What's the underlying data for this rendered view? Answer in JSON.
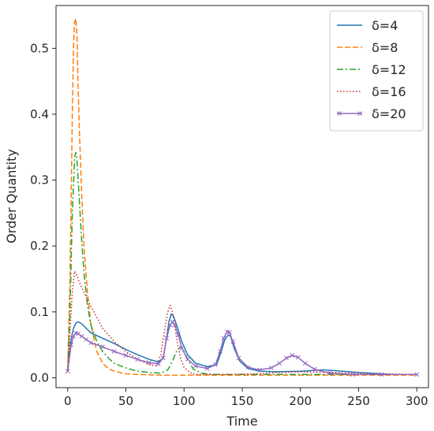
{
  "chart_data": {
    "type": "line",
    "xlabel": "Time",
    "ylabel": "Order Quantity",
    "xlim": [
      -10,
      310
    ],
    "ylim": [
      -0.015,
      0.565
    ],
    "xticks": [
      0,
      50,
      100,
      150,
      200,
      250,
      300
    ],
    "yticks": [
      0.0,
      0.1,
      0.2,
      0.3,
      0.4,
      0.5
    ],
    "xtick_labels": [
      "0",
      "50",
      "100",
      "150",
      "200",
      "250",
      "300"
    ],
    "ytick_labels": [
      "0.0",
      "0.1",
      "0.2",
      "0.3",
      "0.4",
      "0.5"
    ],
    "grid": false,
    "legend_position": "top-right",
    "series": [
      {
        "name": "δ=4",
        "color": "#1f77b4",
        "style": "solid",
        "x": [
          0,
          3,
          5,
          7,
          9,
          12,
          16,
          20,
          30,
          40,
          50,
          60,
          70,
          78,
          82,
          85,
          87,
          89,
          91,
          94,
          98,
          103,
          110,
          120,
          128,
          132,
          135,
          138,
          140,
          143,
          148,
          155,
          165,
          180,
          200,
          220,
          250,
          280,
          300
        ],
        "y": [
          0.01,
          0.06,
          0.075,
          0.083,
          0.085,
          0.082,
          0.075,
          0.068,
          0.06,
          0.052,
          0.043,
          0.035,
          0.028,
          0.024,
          0.03,
          0.06,
          0.085,
          0.097,
          0.093,
          0.078,
          0.055,
          0.035,
          0.022,
          0.017,
          0.02,
          0.04,
          0.058,
          0.065,
          0.063,
          0.045,
          0.025,
          0.014,
          0.01,
          0.009,
          0.01,
          0.012,
          0.008,
          0.005,
          0.005
        ]
      },
      {
        "name": "δ=8",
        "color": "#ff7f0e",
        "style": "dashed",
        "x": [
          0,
          2,
          4,
          5,
          6,
          7,
          8,
          9,
          10,
          12,
          14,
          17,
          20,
          25,
          30,
          35,
          40,
          50,
          60,
          80,
          100,
          130,
          160,
          200,
          250,
          300
        ],
        "y": [
          0.01,
          0.15,
          0.4,
          0.5,
          0.54,
          0.545,
          0.52,
          0.44,
          0.38,
          0.28,
          0.2,
          0.13,
          0.08,
          0.04,
          0.022,
          0.014,
          0.01,
          0.006,
          0.005,
          0.004,
          0.004,
          0.004,
          0.004,
          0.004,
          0.004,
          0.004
        ]
      },
      {
        "name": "δ=12",
        "color": "#2ca02c",
        "style": "dashdot",
        "x": [
          0,
          2,
          4,
          6,
          7,
          8,
          10,
          12,
          14,
          17,
          20,
          25,
          30,
          35,
          40,
          50,
          60,
          70,
          80,
          86,
          90,
          94,
          97,
          100,
          104,
          108,
          115,
          125,
          140,
          160,
          200,
          250,
          300
        ],
        "y": [
          0.01,
          0.1,
          0.25,
          0.335,
          0.342,
          0.33,
          0.27,
          0.21,
          0.16,
          0.11,
          0.08,
          0.055,
          0.04,
          0.03,
          0.022,
          0.015,
          0.01,
          0.008,
          0.007,
          0.012,
          0.025,
          0.042,
          0.047,
          0.04,
          0.025,
          0.013,
          0.007,
          0.005,
          0.005,
          0.005,
          0.005,
          0.005,
          0.005
        ]
      },
      {
        "name": "δ=16",
        "color": "#d62728",
        "style": "dotted",
        "x": [
          0,
          2,
          4,
          6,
          8,
          10,
          14,
          18,
          24,
          30,
          40,
          50,
          60,
          70,
          76,
          80,
          83,
          86,
          88,
          90,
          92,
          94,
          97,
          100,
          105,
          110,
          120,
          130,
          140,
          160,
          180,
          200,
          230,
          260,
          300
        ],
        "y": [
          0.01,
          0.07,
          0.13,
          0.162,
          0.155,
          0.145,
          0.13,
          0.115,
          0.095,
          0.075,
          0.055,
          0.04,
          0.028,
          0.02,
          0.018,
          0.035,
          0.07,
          0.1,
          0.11,
          0.1,
          0.08,
          0.055,
          0.03,
          0.016,
          0.008,
          0.005,
          0.005,
          0.005,
          0.005,
          0.006,
          0.008,
          0.009,
          0.008,
          0.006,
          0.005
        ]
      },
      {
        "name": "δ=20",
        "color": "#9467bd",
        "style": "solid-marker-x",
        "x": [
          0,
          3,
          5,
          7,
          9,
          12,
          16,
          20,
          30,
          40,
          50,
          60,
          70,
          78,
          82,
          85,
          88,
          90,
          92,
          95,
          98,
          103,
          110,
          120,
          127,
          131,
          134,
          137,
          139,
          142,
          147,
          155,
          165,
          175,
          182,
          188,
          193,
          198,
          204,
          212,
          225,
          245,
          270,
          300
        ],
        "y": [
          0.01,
          0.05,
          0.063,
          0.068,
          0.067,
          0.063,
          0.058,
          0.053,
          0.047,
          0.04,
          0.034,
          0.028,
          0.023,
          0.021,
          0.03,
          0.06,
          0.08,
          0.085,
          0.08,
          0.065,
          0.045,
          0.028,
          0.018,
          0.014,
          0.02,
          0.04,
          0.06,
          0.07,
          0.069,
          0.055,
          0.03,
          0.016,
          0.012,
          0.015,
          0.022,
          0.03,
          0.034,
          0.031,
          0.022,
          0.013,
          0.007,
          0.005,
          0.005,
          0.005
        ]
      }
    ]
  }
}
